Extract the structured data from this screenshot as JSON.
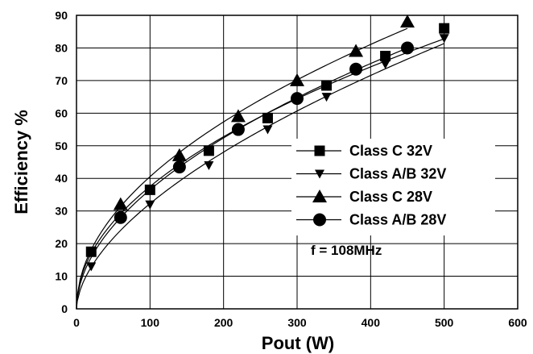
{
  "chart_data": {
    "type": "scatter",
    "title": "",
    "xlabel": "Pout  (W)",
    "ylabel": "Efficiency   %",
    "xlim": [
      0,
      600
    ],
    "ylim": [
      0,
      90
    ],
    "x_ticks": [
      "0",
      "100",
      "200",
      "300",
      "400",
      "500",
      "600"
    ],
    "y_ticks": [
      "0",
      "10",
      "20",
      "30",
      "40",
      "50",
      "60",
      "70",
      "80",
      "90"
    ],
    "grid": true,
    "legend_position": "center-right",
    "annotation": "f = 108MHz",
    "series": [
      {
        "name": "Class C 32V",
        "marker": "square",
        "x": [
          20,
          100,
          180,
          260,
          340,
          420,
          500
        ],
        "y": [
          17.5,
          36.5,
          48.5,
          58.5,
          68.5,
          77.5,
          86
        ]
      },
      {
        "name": "Class A/B 32V",
        "marker": "triangle-down",
        "x": [
          20,
          100,
          180,
          260,
          340,
          420,
          500
        ],
        "y": [
          13,
          32,
          44,
          55,
          65,
          75,
          83
        ]
      },
      {
        "name": "Class C 28V",
        "marker": "triangle-up",
        "x": [
          60,
          140,
          220,
          300,
          380,
          450
        ],
        "y": [
          32,
          47,
          59,
          70,
          79,
          88
        ]
      },
      {
        "name": "Class A/B 28V",
        "marker": "circle",
        "x": [
          60,
          140,
          220,
          300,
          380,
          450
        ],
        "y": [
          28,
          43.5,
          55,
          64.5,
          73.5,
          80
        ]
      }
    ]
  }
}
